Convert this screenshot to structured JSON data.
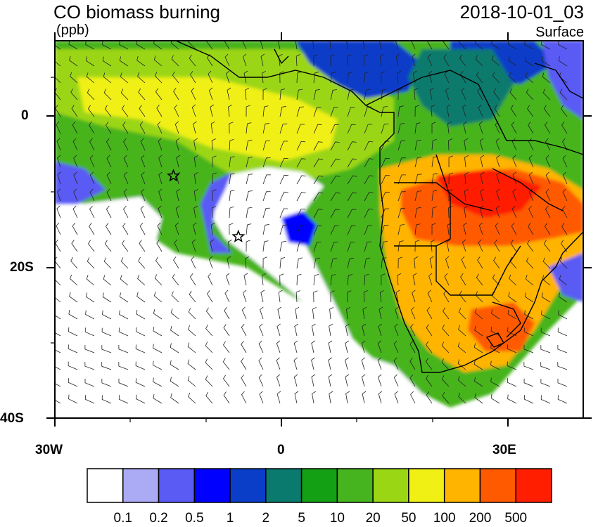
{
  "header": {
    "title": "CO biomass burning",
    "datetime": "2018-10-01_03",
    "units": "(ppb)",
    "level": "Surface"
  },
  "axes": {
    "x_ticks": [
      "30W",
      "0",
      "30E"
    ],
    "y_ticks": [
      "0",
      "20S",
      "40S"
    ]
  },
  "colorbar": {
    "colors": [
      "#ffffff",
      "#aaaaf5",
      "#5a5af5",
      "#0000ff",
      "#0a3ec8",
      "#0a7a6e",
      "#14a014",
      "#46b41e",
      "#9bd614",
      "#f0f014",
      "#ffb400",
      "#ff5a00",
      "#ff1e00"
    ],
    "labels": [
      "0.1",
      "0.2",
      "0.5",
      "1",
      "2",
      "5",
      "10",
      "20",
      "50",
      "100",
      "200",
      "500"
    ]
  },
  "map_data": {
    "markers": [
      {
        "name": "star-marker",
        "lon": -14.3,
        "lat": -7.9
      },
      {
        "name": "star-marker",
        "lon": -5.7,
        "lat": -15.9
      }
    ]
  }
}
